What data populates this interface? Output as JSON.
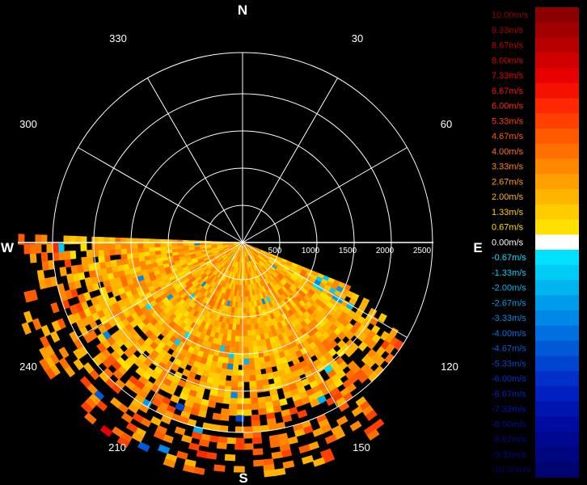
{
  "display": {
    "cardinals": {
      "north": "N",
      "east": "E",
      "south": "S",
      "west": "W"
    },
    "bearings": [
      "30",
      "60",
      "120",
      "150",
      "210",
      "240",
      "300",
      "330"
    ],
    "range_labels": [
      "500",
      "1000",
      "1500",
      "2000",
      "2500"
    ]
  },
  "colorbar": {
    "entries": [
      {
        "label": "10.00m/s",
        "color": "#8b0000"
      },
      {
        "label": "9.33m/s",
        "color": "#a00000"
      },
      {
        "label": "8.67m/s",
        "color": "#b80000"
      },
      {
        "label": "8.00m/s",
        "color": "#d00000"
      },
      {
        "label": "7.33m/s",
        "color": "#e60000"
      },
      {
        "label": "6.67m/s",
        "color": "#f51000"
      },
      {
        "label": "6.00m/s",
        "color": "#ff2800"
      },
      {
        "label": "5.33m/s",
        "color": "#ff4000"
      },
      {
        "label": "4.67m/s",
        "color": "#ff5a00"
      },
      {
        "label": "4.00m/s",
        "color": "#ff7000"
      },
      {
        "label": "3.33m/s",
        "color": "#ff8800"
      },
      {
        "label": "2.67m/s",
        "color": "#ffa000"
      },
      {
        "label": "2.00m/s",
        "color": "#ffb400"
      },
      {
        "label": "1.33m/s",
        "color": "#ffcc00"
      },
      {
        "label": "0.67m/s",
        "color": "#ffe000"
      },
      {
        "label": "0.00m/s",
        "color": "#ffffff"
      },
      {
        "label": "-0.67m/s",
        "color": "#00e0ff"
      },
      {
        "label": "-1.33m/s",
        "color": "#00ccf5"
      },
      {
        "label": "-2.00m/s",
        "color": "#00b4f0"
      },
      {
        "label": "-2.67m/s",
        "color": "#009ceb"
      },
      {
        "label": "-3.33m/s",
        "color": "#0088e6"
      },
      {
        "label": "-4.00m/s",
        "color": "#0070e0"
      },
      {
        "label": "-4.67m/s",
        "color": "#005ad8"
      },
      {
        "label": "-5.33m/s",
        "color": "#0044d0"
      },
      {
        "label": "-6.00m/s",
        "color": "#0030c8"
      },
      {
        "label": "-6.67m/s",
        "color": "#0020c0"
      },
      {
        "label": "-7.33m/s",
        "color": "#0014b0"
      },
      {
        "label": "-8.00m/s",
        "color": "#000ca0"
      },
      {
        "label": "-8.67m/s",
        "color": "#000890"
      },
      {
        "label": "-9.33m/s",
        "color": "#000680"
      },
      {
        "label": "-10.00m/s",
        "color": "#000470"
      }
    ]
  }
}
